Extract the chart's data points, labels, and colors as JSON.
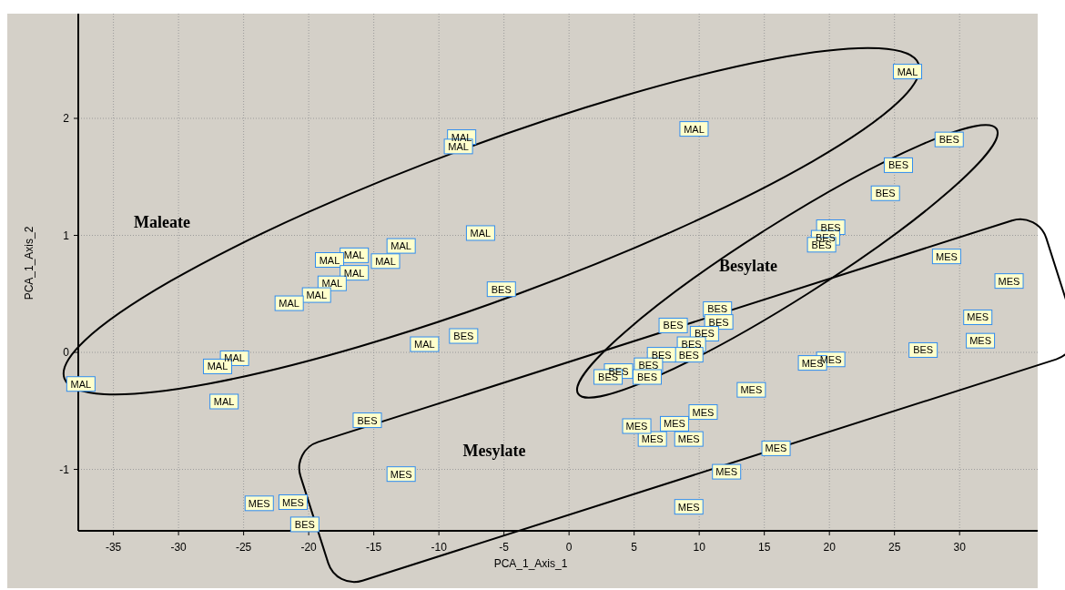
{
  "chart_data": {
    "type": "scatter",
    "xlabel": "PCA_1_Axis_1",
    "ylabel": "PCA_1_Axis_2",
    "xlim": [
      -37.7,
      36.0
    ],
    "ylim": [
      -1.525,
      2.895
    ],
    "xticks": [
      -35,
      -30,
      -25,
      -20,
      -15,
      -10,
      -5,
      0,
      5,
      10,
      15,
      20,
      25,
      30
    ],
    "yticks": [
      -1,
      0,
      1,
      2
    ],
    "grid": true,
    "legend": false,
    "marker": "square",
    "series": [
      {
        "name": "MAL",
        "color": "#ffffcc",
        "x": [
          26.0,
          9.6,
          -8.25,
          -8.5,
          -6.8,
          -12.9,
          -14.1,
          -16.5,
          -18.4,
          -16.5,
          -18.2,
          -19.4,
          -21.5,
          -11.1,
          -25.7,
          -27.0,
          -26.5,
          -37.5
        ],
        "values": [
          2.4,
          1.91,
          1.84,
          1.76,
          1.02,
          0.91,
          0.78,
          0.83,
          0.79,
          0.68,
          0.59,
          0.49,
          0.42,
          0.07,
          -0.05,
          -0.12,
          -0.42,
          -0.27
        ]
      },
      {
        "name": "BES",
        "color": "#ffffcc",
        "x": [
          29.2,
          25.3,
          24.3,
          20.1,
          19.7,
          19.4,
          -5.2,
          11.4,
          11.5,
          10.4,
          8.0,
          9.4,
          9.2,
          -8.1,
          27.2,
          7.1,
          6.1,
          3.8,
          3.0,
          6.0,
          -15.5,
          -20.3
        ],
        "values": [
          1.82,
          1.6,
          1.36,
          1.07,
          0.98,
          0.92,
          0.54,
          0.37,
          0.26,
          0.16,
          0.23,
          0.07,
          -0.02,
          0.14,
          0.02,
          -0.02,
          -0.11,
          -0.16,
          -0.21,
          -0.21,
          -0.58,
          -1.47
        ]
      },
      {
        "name": "MES",
        "color": "#ffffcc",
        "x": [
          33.8,
          29.0,
          31.4,
          31.6,
          20.1,
          18.7,
          14.0,
          10.3,
          8.1,
          9.2,
          6.4,
          5.2,
          15.9,
          12.1,
          9.2,
          -12.9,
          -21.2,
          -23.8
        ],
        "values": [
          0.61,
          0.82,
          0.3,
          0.1,
          -0.06,
          -0.09,
          -0.32,
          -0.51,
          -0.61,
          -0.74,
          -0.74,
          -0.63,
          -0.82,
          -1.02,
          -1.32,
          -1.04,
          -1.28,
          -1.29
        ]
      }
    ],
    "annotations": [
      "Maleate",
      "Besylate",
      "Mesylate"
    ]
  }
}
